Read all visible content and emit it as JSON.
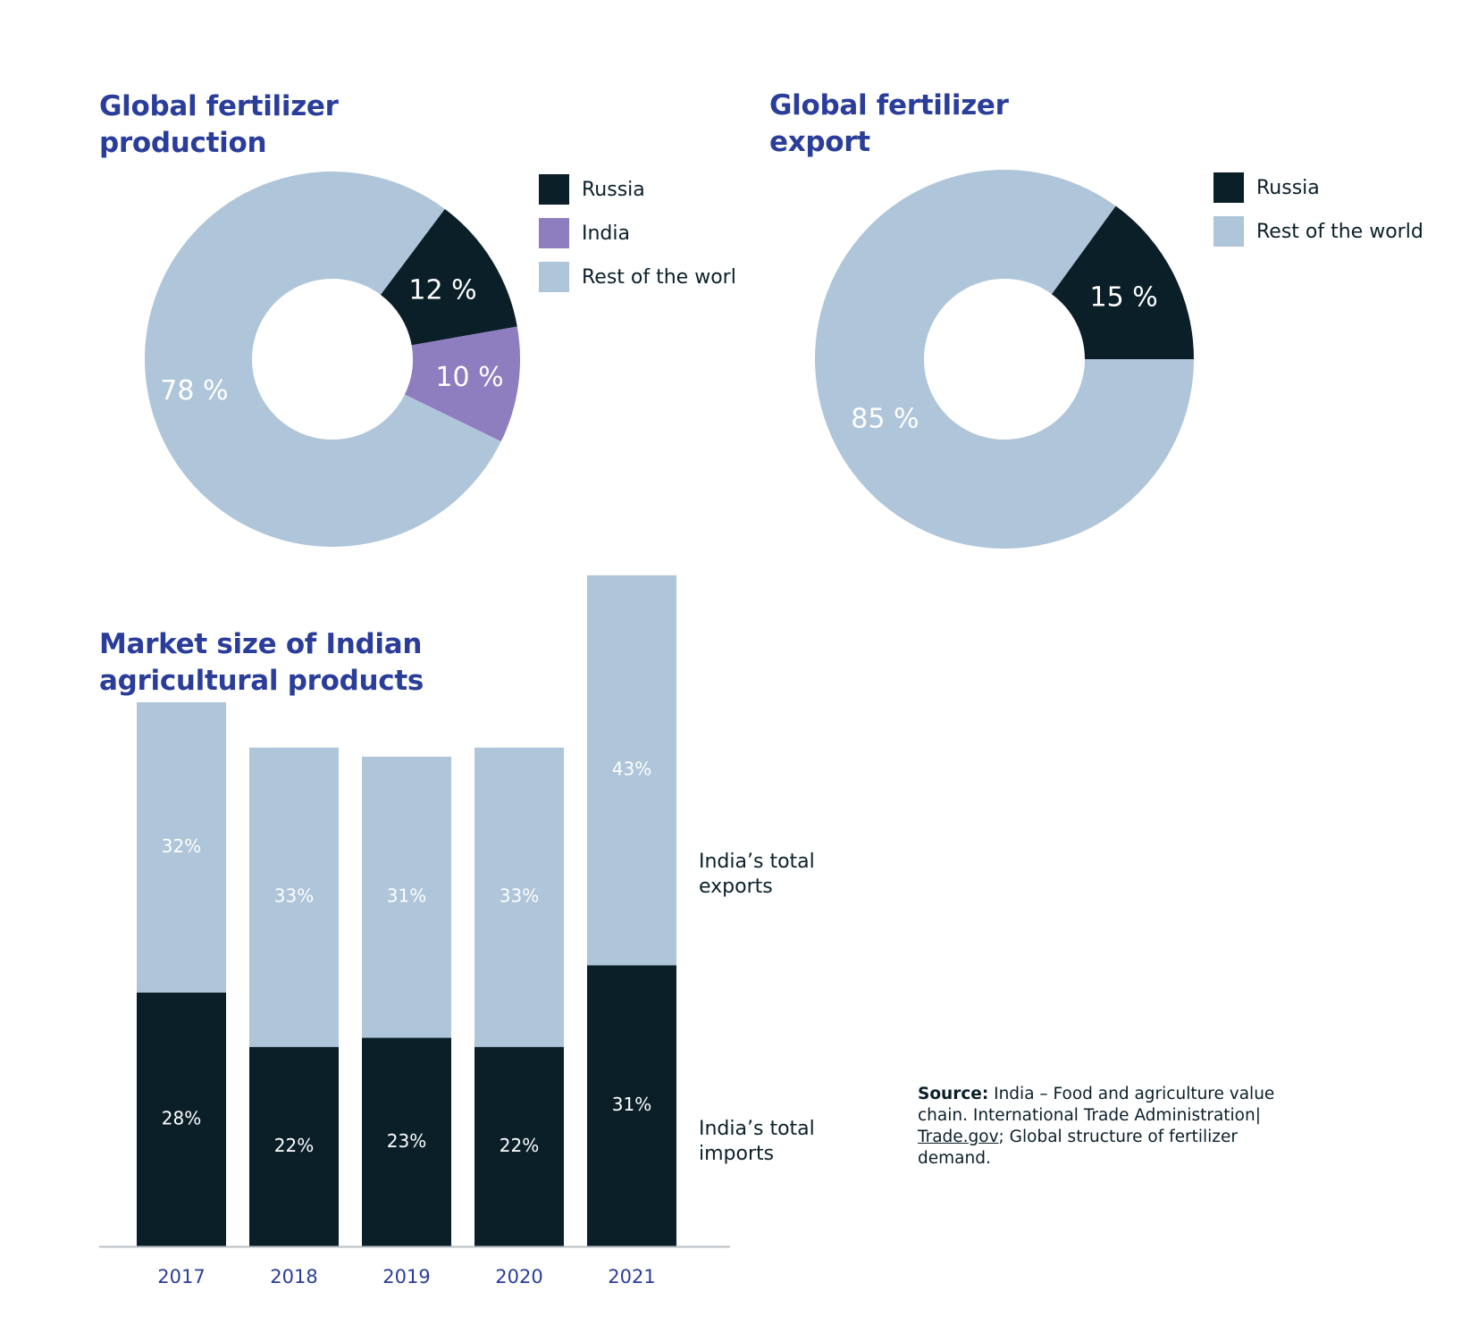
{
  "colors": {
    "russia": "#0b1f29",
    "india": "#8e7dbf",
    "rest": "#afc5d9",
    "title": "#2a3d9a",
    "white": "#ffffff"
  },
  "chart_data": [
    {
      "type": "pie",
      "title_lines": [
        "Global fertilizer",
        "production"
      ],
      "slices": [
        {
          "name": "Russia",
          "value": 12,
          "label": "12 %",
          "color": "#0b1f29"
        },
        {
          "name": "India",
          "value": 10,
          "label": "10 %",
          "color": "#8e7dbf"
        },
        {
          "name": "Rest of the worl",
          "value": 78,
          "label": "78 %",
          "color": "#afc5d9"
        }
      ],
      "legend": "right"
    },
    {
      "type": "pie",
      "title_lines": [
        "Global fertilizer",
        "export"
      ],
      "slices": [
        {
          "name": "Russia",
          "value": 15,
          "label": "15 %",
          "color": "#0b1f29"
        },
        {
          "name": "Rest of the world",
          "value": 85,
          "label": "85 %",
          "color": "#afc5d9"
        }
      ],
      "legend": "right"
    },
    {
      "type": "bar",
      "stacked": true,
      "title_lines": [
        "Market size of Indian",
        "agricultural products"
      ],
      "categories": [
        "2017",
        "2018",
        "2019",
        "2020",
        "2021"
      ],
      "series": [
        {
          "name": "India’s total imports",
          "name_lines": [
            "India’s total",
            "imports"
          ],
          "color": "#0b1f29",
          "values": [
            28,
            22,
            23,
            22,
            31
          ],
          "labels": [
            "28%",
            "22%",
            "23%",
            "22%",
            "31%"
          ]
        },
        {
          "name": "India’s total exports",
          "name_lines": [
            "India’s total",
            "exports"
          ],
          "color": "#afc5d9",
          "values": [
            32,
            33,
            31,
            33,
            43
          ],
          "labels": [
            "32%",
            "33%",
            "31%",
            "33%",
            "43%"
          ]
        }
      ]
    }
  ],
  "source": {
    "label": "Source:",
    "text_before": " India – Food and agriculture value chain. International Trade Administration| ",
    "link": "Trade.gov",
    "text_after": "; Global structure of fertilizer demand."
  }
}
